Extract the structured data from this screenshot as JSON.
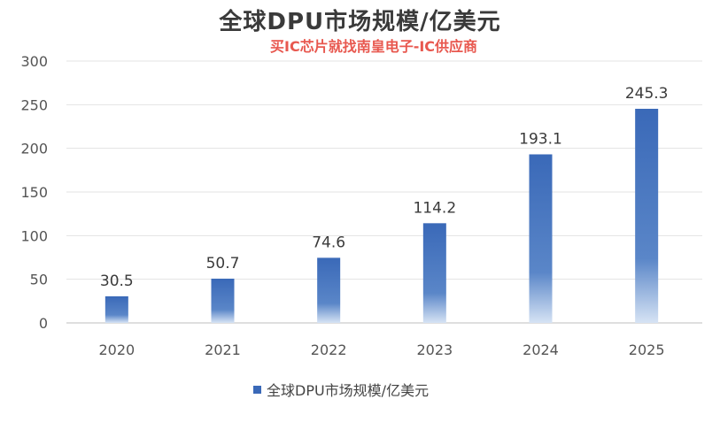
{
  "chart_data": {
    "type": "bar",
    "title": "全球DPU市场规模/亿美元",
    "categories": [
      "2020",
      "2021",
      "2022",
      "2023",
      "2024",
      "2025"
    ],
    "series": [
      {
        "name": "全球DPU市场规模/亿美元",
        "values": [
          30.5,
          50.7,
          74.6,
          114.2,
          193.1,
          245.3
        ]
      }
    ],
    "data_labels": [
      "30.5",
      "50.7",
      "74.6",
      "114.2",
      "193.1",
      "245.3"
    ],
    "xlabel": "",
    "ylabel": "",
    "ylim": [
      0,
      300
    ],
    "yticks": [
      0,
      50,
      100,
      150,
      200,
      250,
      300
    ],
    "grid": true,
    "legend_position": "bottom-center",
    "bar_color": "#3a69b8"
  },
  "watermark": "买IC芯片就找南皇电子-IC供应商"
}
